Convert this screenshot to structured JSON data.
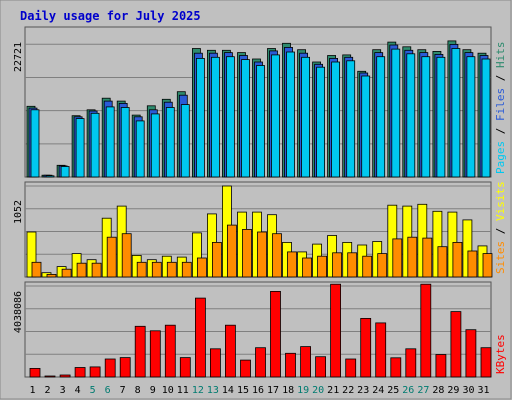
{
  "colors": {
    "background": "#c0c0c0",
    "title": "#0000cc",
    "hits": "#2e8b6e",
    "files": "#2a5bd7",
    "pages": "#00c8f0",
    "visits": "#ffff00",
    "sites": "#ff8c00",
    "kbytes": "#ff0000",
    "weekend_label": "#007b70"
  },
  "chart_data": {
    "type": "bar",
    "title": "Daily usage for July 2025",
    "categories": [
      "1",
      "2",
      "3",
      "4",
      "5",
      "6",
      "7",
      "8",
      "9",
      "10",
      "11",
      "12",
      "13",
      "14",
      "15",
      "16",
      "17",
      "18",
      "19",
      "20",
      "21",
      "22",
      "23",
      "24",
      "25",
      "26",
      "27",
      "28",
      "29",
      "30",
      "31"
    ],
    "weekend_days": [
      "5",
      "6",
      "12",
      "13",
      "19",
      "20",
      "26",
      "27"
    ],
    "grid": true,
    "panels": [
      {
        "id": "traffic",
        "max_label": "22721",
        "ylim": [
          0,
          25000
        ],
        "legend": [
          "Pages",
          "Files",
          "Hits"
        ],
        "series": [
          {
            "name": "Hits",
            "values": [
              12100,
              300,
              2000,
              10500,
              11500,
              13500,
              13000,
              10600,
              12200,
              13300,
              14600,
              22000,
              21700,
              21700,
              21300,
              20200,
              22000,
              22900,
              21800,
              19700,
              20800,
              20900,
              18100,
              21800,
              23100,
              22300,
              21800,
              21500,
              23300,
              21800,
              21200
            ]
          },
          {
            "name": "Files",
            "values": [
              11800,
              300,
              1900,
              10300,
              11300,
              13000,
              12600,
              10300,
              11500,
              12800,
              14000,
              21200,
              21200,
              21300,
              20800,
              19700,
              21600,
              22200,
              21200,
              19300,
              20300,
              20500,
              17800,
              21300,
              22600,
              21700,
              21300,
              21000,
              22700,
              21300,
              20800
            ]
          },
          {
            "name": "Pages",
            "values": [
              11500,
              200,
              1800,
              10000,
              10900,
              12000,
              11900,
              9600,
              10800,
              11900,
              12400,
              20300,
              20500,
              20600,
              20100,
              19100,
              20900,
              21400,
              20500,
              18800,
              19700,
              19900,
              17300,
              20600,
              21900,
              21100,
              20600,
              20500,
              22000,
              20600,
              20200
            ]
          }
        ]
      },
      {
        "id": "visits",
        "max_label": "1052",
        "ylim": [
          0,
          1052
        ],
        "legend": [
          "Sites",
          "Visits"
        ],
        "series": [
          {
            "name": "Visits",
            "values": [
              520,
              50,
              120,
              270,
              200,
              680,
              820,
              250,
              200,
              240,
              230,
              510,
              730,
              1052,
              750,
              750,
              720,
              400,
              290,
              380,
              480,
              400,
              370,
              410,
              830,
              820,
              840,
              760,
              750,
              660,
              360
            ]
          },
          {
            "name": "Sites",
            "values": [
              170,
              30,
              90,
              160,
              160,
              460,
              500,
              170,
              170,
              170,
              170,
              220,
              400,
              600,
              550,
              520,
              500,
              290,
              220,
              240,
              280,
              280,
              240,
              270,
              440,
              460,
              450,
              350,
              400,
              300,
              270
            ]
          }
        ]
      },
      {
        "id": "kbytes",
        "max_label": "4038086",
        "ylim": [
          0,
          4038086
        ],
        "legend": [
          "KBytes"
        ],
        "series": [
          {
            "name": "KBytes",
            "values": [
              380000,
              30000,
              90000,
              420000,
              450000,
              800000,
              860000,
              2250000,
              2050000,
              2300000,
              860000,
              3500000,
              1250000,
              2300000,
              750000,
              1300000,
              3800000,
              1050000,
              1350000,
              900000,
              4150000,
              800000,
              2600000,
              2400000,
              850000,
              1250000,
              4200000,
              1000000,
              2900000,
              2100000,
              1300000
            ]
          }
        ]
      }
    ]
  }
}
